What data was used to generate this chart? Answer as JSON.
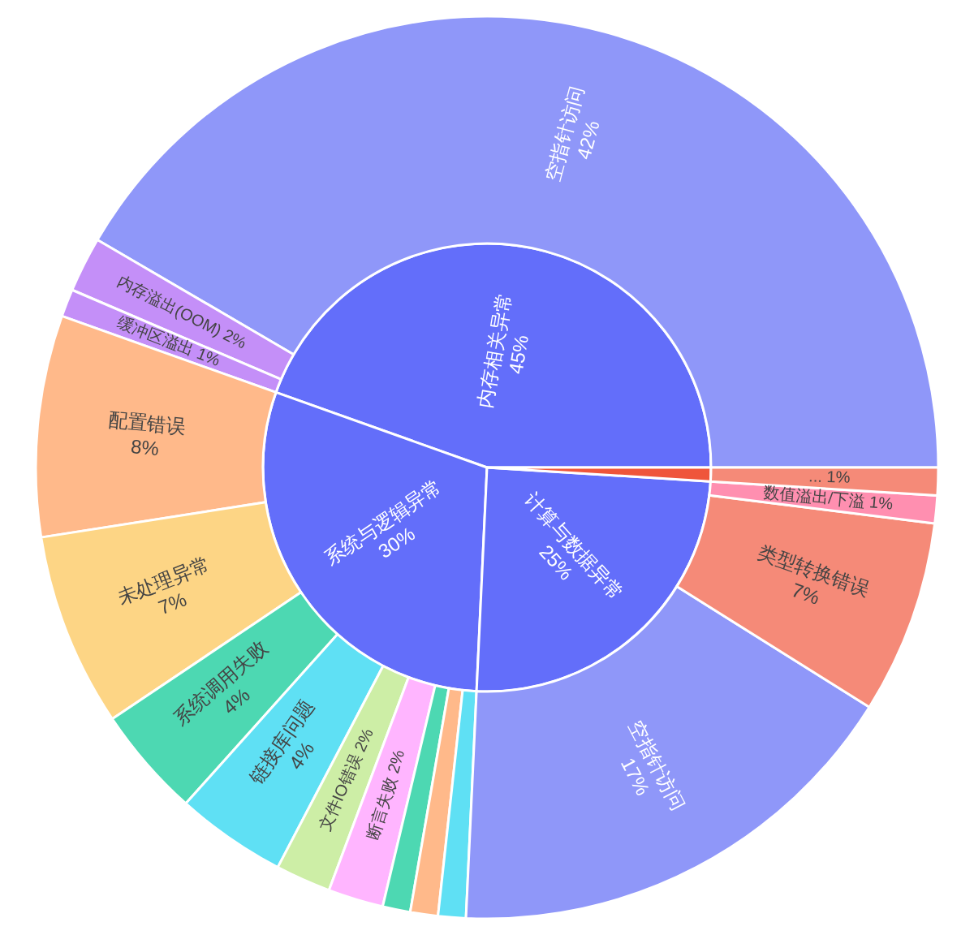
{
  "chart_data": [
    {
      "type": "pie",
      "categories": [
        "内存相关异常",
        "系统与逻辑异常",
        "计算与数据异常",
        null
      ],
      "values": [
        45,
        30,
        25,
        1
      ],
      "value_labels": [
        "45%",
        "30%",
        "25%",
        null
      ],
      "colors": [
        "#636efa",
        "#636efa",
        "#636efa",
        "#ef553b"
      ]
    },
    {
      "type": "donut",
      "categories": [
        "空指针访问",
        "内存溢出(OOM)",
        "缓冲区溢出",
        "配置错误",
        "未处理异常",
        "系统调用失败",
        "链接库问题",
        "文件IO错误",
        "断言失败",
        null,
        null,
        null,
        "空指针访问",
        "类型转换错误",
        "数值溢出/下溢",
        "..."
      ],
      "values": [
        42,
        2,
        1,
        8,
        7,
        4,
        4,
        2,
        2,
        1,
        1,
        1,
        17,
        7,
        1,
        1
      ],
      "value_labels": [
        "42%",
        "2%",
        "1%",
        "8%",
        "7%",
        "4%",
        "4%",
        "2%",
        "2%",
        null,
        null,
        null,
        "17%",
        "7%",
        "1%",
        "1%"
      ],
      "colors": [
        "#8f97f9",
        "#c48ff8",
        "#c48ff8",
        "#ffb98a",
        "#fdd585",
        "#4dd8b2",
        "#5fe0f4",
        "#cdeea6",
        "#ffb5ff",
        "#4dd8b2",
        "#ffb98a",
        "#5fe0f4",
        "#8f97f9",
        "#f58a78",
        "#ff8fb0",
        "#f58a78"
      ]
    }
  ]
}
